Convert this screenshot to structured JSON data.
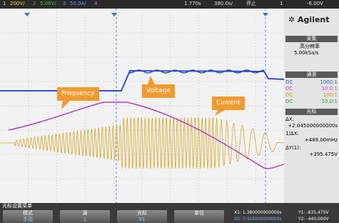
{
  "status_bar": {
    "ch1_num": "1",
    "ch1_scale": "200V/",
    "ch2_num": "2",
    "ch2_scale": "5.00V/",
    "ch3_num": "3",
    "ch3_scale": "50.0A/",
    "ch4_num": "4",
    "time_delay": "1.770s",
    "time_scale": "380.0s/",
    "run_state": "停止",
    "trigger_source": "1",
    "trigger_level": "-6.00V"
  },
  "annotations": {
    "frequency": "Frequency",
    "voltage": "Voltage",
    "current": "Current"
  },
  "side_panel": {
    "brand": "Agilent",
    "acquire": {
      "title": "采集",
      "mode": "高分辨率",
      "rate": "5.00kSa/s"
    },
    "channels": {
      "title": "通道",
      "rows": [
        {
          "coupling": "DC",
          "probe": "1000:1"
        },
        {
          "coupling": "DC",
          "probe": "10.0:1"
        },
        {
          "coupling": "DC",
          "probe": "100:1"
        },
        {
          "coupling": "DC",
          "probe": "10.0:1"
        }
      ]
    },
    "cursors": {
      "title": "光标",
      "items": [
        {
          "label": "ΔX:",
          "value": "+2.045000000000s"
        },
        {
          "label": "1/ΔX:",
          "value": "+489.00mHz"
        },
        {
          "label": "ΔY(1):",
          "value": "+395.475V"
        }
      ]
    }
  },
  "softkey_menu": {
    "title": "光标设置菜单",
    "keys": [
      {
        "label": "模式",
        "value": "手动"
      },
      {
        "label": "源",
        "value": "1"
      },
      {
        "label": "光标",
        "value": "X1"
      },
      {
        "label": "单位"
      }
    ],
    "readout": {
      "x1": "X1: 1.380000000000s",
      "x2": "X2: 3.425000000000s",
      "y1": "Y1: -835.475V",
      "y2": "Y2: -440.000V"
    }
  }
}
